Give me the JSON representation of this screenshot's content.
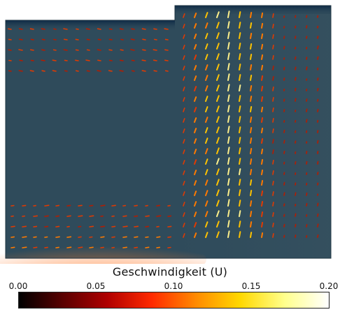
{
  "colorbar": {
    "title": "Geschwindigkeit (U)",
    "ticks": [
      "0.00",
      "0.05",
      "0.10",
      "0.15",
      "0.20"
    ],
    "range": [
      0.0,
      0.2
    ],
    "colors": [
      "#000000",
      "#5a0000",
      "#b00000",
      "#ff2a00",
      "#ff8a00",
      "#ffd800",
      "#ffff8c",
      "#ffffff"
    ]
  },
  "plot": {
    "background_color": "#2f4b5b",
    "domain_shape": "step (right section taller)",
    "field_name": "U"
  }
}
